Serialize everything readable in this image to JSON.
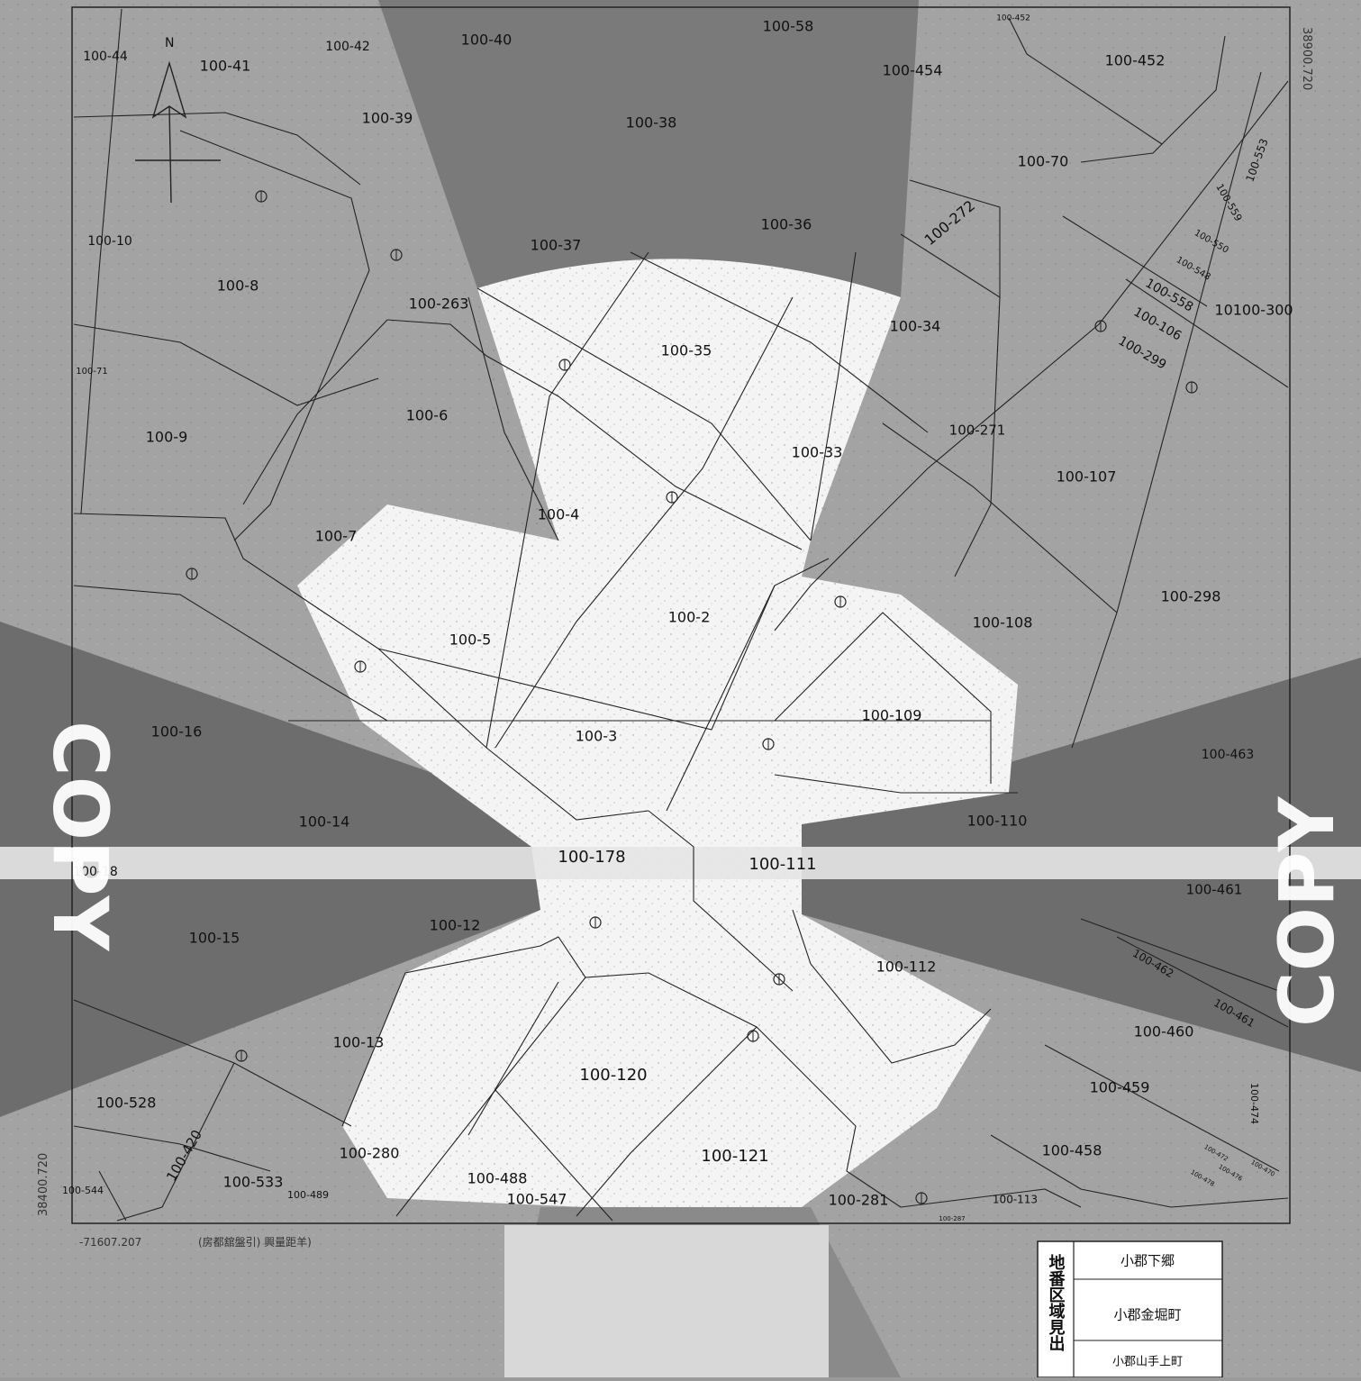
{
  "map": {
    "north_label": "N",
    "coord_top_right": "38900.720",
    "coord_bottom_left": "-71607.207",
    "coord_left": "38400.720",
    "scale_note": "(房都舘盤引) 興量距羊)",
    "watermark": "COPY",
    "colors": {
      "paper_gray": "#9a9a9a",
      "dark_band": "#6f6f6f",
      "white_area": "#f7f7f7",
      "line": "#222222"
    }
  },
  "parcels": [
    "100-44",
    "100-42",
    "100-41",
    "100-40",
    "100-39",
    "100-38",
    "100-58",
    "100-454",
    "100-452",
    "100-70",
    "100-37",
    "100-36",
    "100-272",
    "100-10",
    "100-8",
    "100-263",
    "100-35",
    "100-34",
    "100-71",
    "100-9",
    "100-6",
    "100-33",
    "100-271",
    "100-107",
    "100-4",
    "100-7",
    "100-2",
    "100-108",
    "100-298",
    "100-5",
    "100-109",
    "100-3",
    "100-16",
    "100-463",
    "100-14",
    "100-110",
    "100-178",
    "100-111",
    "100-18",
    "100-461",
    "100-15",
    "100-12",
    "100-112",
    "100-13",
    "100-120",
    "100-460",
    "100-528",
    "100-459",
    "100-420",
    "100-280",
    "100-121",
    "100-488",
    "100-458",
    "100-533",
    "100-547",
    "100-281",
    "100-544",
    "100-489",
    "100-113",
    "100-559",
    "100-558",
    "100-106",
    "100-299",
    "10100-300",
    "100-553",
    "100-548",
    "100-550",
    "100-462",
    "100-474",
    "100-461b",
    "100-452b",
    "100-287",
    "100-470",
    "100-476",
    "100-478",
    "100-472"
  ],
  "legend": {
    "header": "地番区域見出",
    "rows": [
      "小郡下郷",
      "小郡金堀町",
      "小郡山手上町"
    ]
  }
}
